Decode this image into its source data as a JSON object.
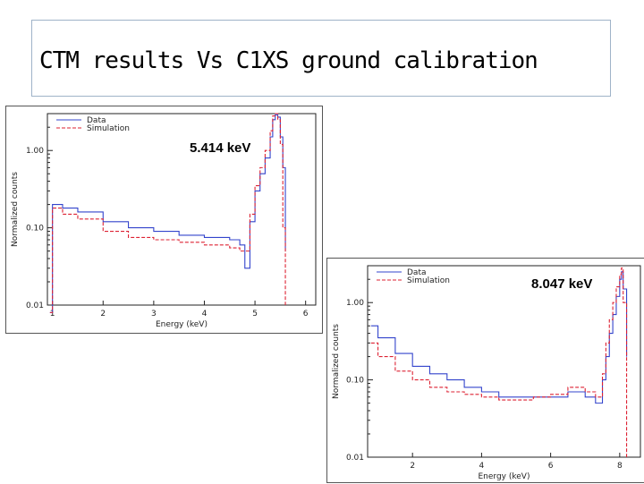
{
  "slide": {
    "title": "CTM results Vs C1XS ground calibration"
  },
  "colors": {
    "data": "#3344cc",
    "simulation": "#dd2233",
    "axis": "#222222"
  },
  "chart_data": [
    {
      "type": "line",
      "annotation": "5.414 keV",
      "xlabel": "Energy (keV)",
      "ylabel": "Normalized counts",
      "xlim": [
        0.9,
        6.2
      ],
      "ylim": [
        0.01,
        3.0
      ],
      "y_scale": "log",
      "x_ticks": [
        "1",
        "2",
        "3",
        "4",
        "5",
        "6"
      ],
      "y_ticks": [
        "0.01",
        "0.10",
        "1.00"
      ],
      "legend": "top-left",
      "series": [
        {
          "name": "Data",
          "x": [
            0.95,
            1.0,
            1.2,
            1.5,
            2.0,
            2.5,
            3.0,
            3.5,
            4.0,
            4.5,
            4.7,
            4.8,
            4.9,
            5.0,
            5.1,
            5.2,
            5.3,
            5.35,
            5.4,
            5.45,
            5.5,
            5.55,
            5.6
          ],
          "y": [
            0.008,
            0.2,
            0.18,
            0.16,
            0.12,
            0.1,
            0.09,
            0.08,
            0.075,
            0.07,
            0.06,
            0.03,
            0.12,
            0.3,
            0.5,
            0.8,
            1.5,
            2.5,
            2.9,
            2.7,
            1.5,
            0.6,
            0.05
          ]
        },
        {
          "name": "Simulation",
          "x": [
            0.95,
            1.0,
            1.2,
            1.5,
            2.0,
            2.5,
            3.0,
            3.5,
            4.0,
            4.5,
            4.7,
            4.8,
            4.9,
            5.0,
            5.1,
            5.2,
            5.3,
            5.35,
            5.4,
            5.45,
            5.5,
            5.55,
            5.6
          ],
          "y": [
            0.008,
            0.18,
            0.15,
            0.13,
            0.09,
            0.075,
            0.07,
            0.065,
            0.06,
            0.055,
            0.05,
            0.05,
            0.15,
            0.35,
            0.6,
            1.0,
            1.8,
            2.8,
            3.0,
            2.5,
            1.2,
            0.1,
            0.01
          ]
        }
      ]
    },
    {
      "type": "line",
      "annotation": "8.047 keV",
      "xlabel": "Energy (keV)",
      "ylabel": "Normalized counts",
      "xlim": [
        0.7,
        8.6
      ],
      "ylim": [
        0.01,
        3.0
      ],
      "y_scale": "log",
      "x_ticks": [
        "2",
        "4",
        "6",
        "8"
      ],
      "y_ticks": [
        "0.01",
        "0.10",
        "1.00"
      ],
      "legend": "top-left",
      "series": [
        {
          "name": "Data",
          "x": [
            0.8,
            1.0,
            1.5,
            2.0,
            2.5,
            3.0,
            3.5,
            4.0,
            4.5,
            5.0,
            5.5,
            6.0,
            6.5,
            7.0,
            7.3,
            7.5,
            7.6,
            7.7,
            7.8,
            7.9,
            8.0,
            8.05,
            8.1,
            8.2
          ],
          "y": [
            0.5,
            0.35,
            0.22,
            0.15,
            0.12,
            0.1,
            0.08,
            0.07,
            0.06,
            0.06,
            0.06,
            0.06,
            0.07,
            0.06,
            0.05,
            0.1,
            0.2,
            0.4,
            0.7,
            1.2,
            2.0,
            2.5,
            1.5,
            0.2
          ]
        },
        {
          "name": "Simulation",
          "x": [
            0.8,
            1.0,
            1.5,
            2.0,
            2.5,
            3.0,
            3.5,
            4.0,
            4.5,
            5.0,
            5.5,
            6.0,
            6.5,
            7.0,
            7.3,
            7.5,
            7.6,
            7.7,
            7.8,
            7.9,
            8.0,
            8.05,
            8.1,
            8.2
          ],
          "y": [
            0.3,
            0.2,
            0.13,
            0.1,
            0.08,
            0.07,
            0.065,
            0.06,
            0.055,
            0.055,
            0.06,
            0.065,
            0.08,
            0.07,
            0.06,
            0.12,
            0.3,
            0.6,
            1.0,
            1.6,
            2.3,
            2.8,
            1.0,
            0.01
          ]
        }
      ]
    }
  ]
}
